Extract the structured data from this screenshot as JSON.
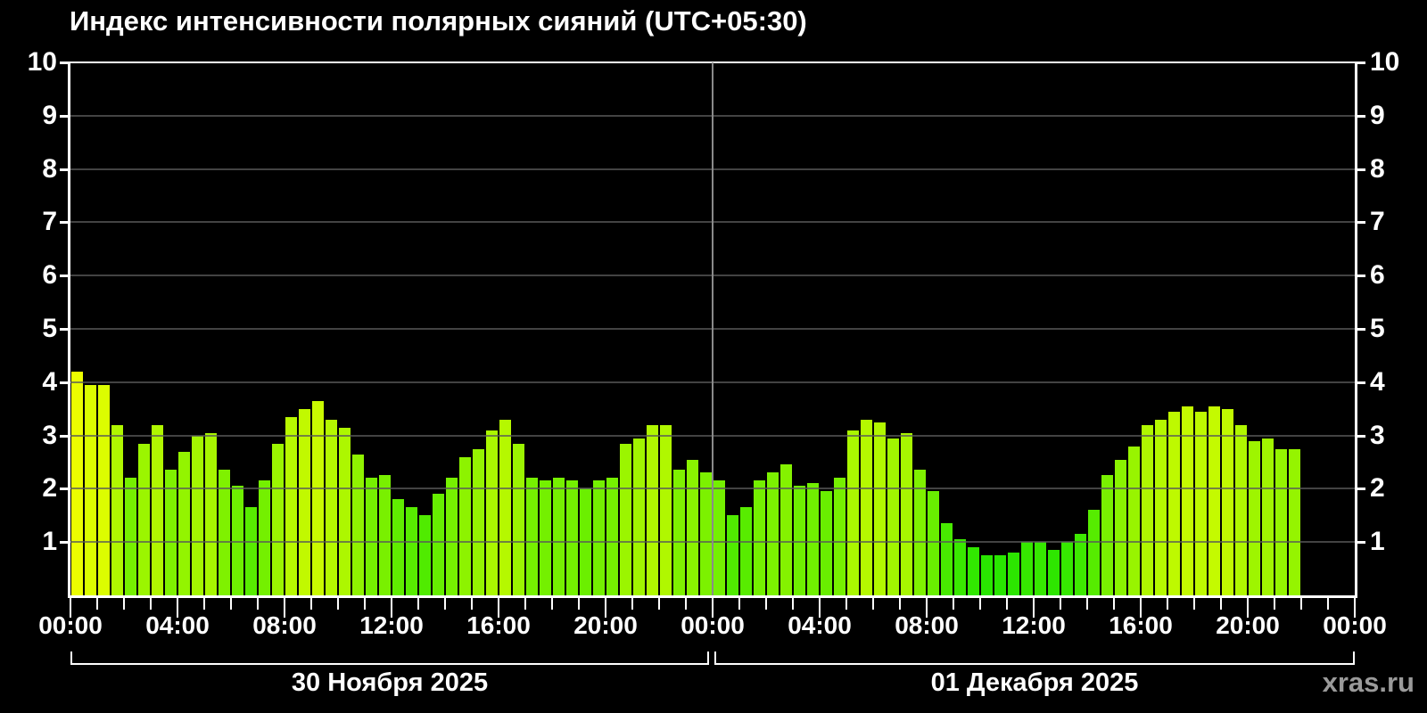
{
  "title": "Индекс интенсивности полярных сияний (UTC+05:30)",
  "watermark": "xras.ru",
  "y_axis": {
    "min": 0,
    "max": 10,
    "tick_labels": [
      "1",
      "2",
      "3",
      "4",
      "5",
      "6",
      "7",
      "8",
      "9",
      "10"
    ]
  },
  "x_axis": {
    "labels": [
      "00:00",
      "04:00",
      "08:00",
      "12:00",
      "16:00",
      "20:00",
      "00:00",
      "04:00",
      "08:00",
      "12:00",
      "16:00",
      "20:00",
      "00:00"
    ],
    "minor_tick_every_hours": 1,
    "major_tick_every_hours": 4,
    "total_hours": 48
  },
  "days": [
    {
      "label": "30 Ноября 2025"
    },
    {
      "label": "01 Декабря 2025"
    }
  ],
  "chart_data": {
    "type": "bar",
    "title": "Индекс интенсивности полярных сияний (UTC+05:30)",
    "ylabel": "",
    "xlabel": "",
    "ylim": [
      0,
      10
    ],
    "grid": true,
    "bar_interval_minutes": 30,
    "color_rule": "higher value = yellow-green, lower value = pure green",
    "series": [
      {
        "name": "30 Ноября 2025",
        "time_start": "00:00",
        "time_step_min": 30,
        "values": [
          4.2,
          3.95,
          3.95,
          3.2,
          2.2,
          2.85,
          3.2,
          2.35,
          2.7,
          3.0,
          3.05,
          2.35,
          2.05,
          1.65,
          2.15,
          2.85,
          3.35,
          3.5,
          3.65,
          3.3,
          3.15,
          2.65,
          2.2,
          2.25,
          1.8,
          1.65,
          1.5,
          1.9,
          2.2,
          2.6,
          2.75,
          3.1,
          3.3,
          2.85,
          2.2,
          2.15,
          2.2,
          2.15,
          2.0,
          2.15,
          2.2,
          2.85,
          2.95,
          3.2,
          3.2,
          2.35,
          2.55,
          2.3
        ]
      },
      {
        "name": "01 Декабря 2025",
        "time_start": "00:00",
        "time_step_min": 30,
        "values": [
          2.15,
          1.5,
          1.65,
          2.15,
          2.3,
          2.45,
          2.05,
          2.1,
          1.95,
          2.2,
          3.1,
          3.3,
          3.25,
          2.95,
          3.05,
          2.35,
          1.95,
          1.35,
          1.05,
          0.9,
          0.75,
          0.75,
          0.8,
          1.0,
          1.0,
          0.85,
          1.0,
          1.15,
          1.6,
          2.25,
          2.55,
          2.8,
          3.2,
          3.3,
          3.45,
          3.55,
          3.45,
          3.55,
          3.5,
          3.2,
          2.9,
          2.95,
          2.75,
          2.75
        ]
      }
    ]
  }
}
